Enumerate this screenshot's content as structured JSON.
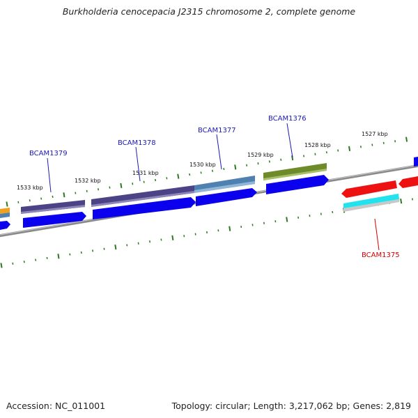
{
  "title": "Burkholderia cenocepacia J2315 chromosome 2, complete genome",
  "accession": "Accession: NC_011001",
  "summary": "Topology: circular; Length: 3,217,062 bp; Genes: 2,819",
  "colors": {
    "backbone": "#8a8a8a",
    "tick": "#2a7a1e",
    "forward_gene_label": "#1a1ab5",
    "reverse_gene_label": "#d40000",
    "cds_strand": "#0a00ee",
    "cog_slate": "#4b4386",
    "cog_steelblue": "#4e80b0",
    "cog_olive": "#6e8a2a",
    "cog_orange": "#f0a020",
    "cog_cyan": "#22e2ee",
    "cog_red": "#ee1111"
  },
  "ticks": [
    {
      "label": "1533 kbp"
    },
    {
      "label": "1532 kbp"
    },
    {
      "label": "1531 kbp"
    },
    {
      "label": "1530 kbp"
    },
    {
      "label": "1529 kbp"
    },
    {
      "label": "1528 kbp"
    },
    {
      "label": "1527 kbp"
    }
  ],
  "genes": [
    {
      "name": "BCAM1379",
      "strand": "forward"
    },
    {
      "name": "BCAM1378",
      "strand": "forward"
    },
    {
      "name": "BCAM1377",
      "strand": "forward"
    },
    {
      "name": "BCAM1376",
      "strand": "forward"
    },
    {
      "name": "BCAM1375",
      "strand": "reverse"
    }
  ]
}
